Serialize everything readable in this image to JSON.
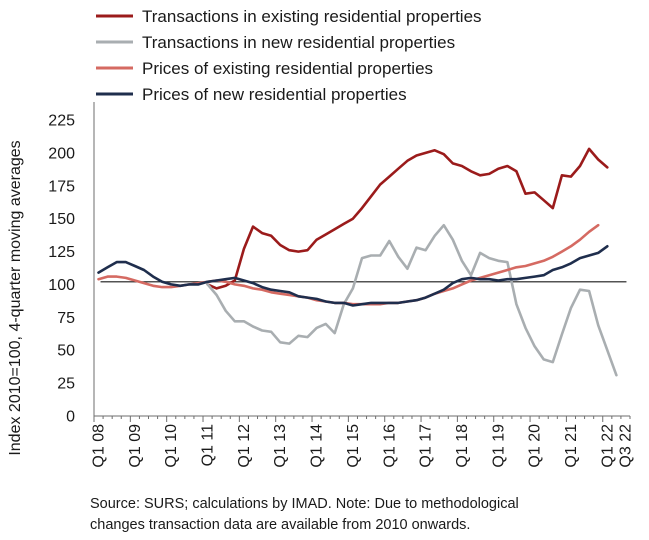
{
  "chart_data": {
    "type": "line",
    "ylabel": "Index 2010=100, 4-quarter moving averages",
    "ylim": [
      0,
      225
    ],
    "yticks": [
      0,
      25,
      50,
      75,
      100,
      125,
      150,
      175,
      200,
      225
    ],
    "xticks": [
      "Q1 08",
      "Q1 09",
      "Q1 10",
      "Q1 11",
      "Q1 12",
      "Q1 13",
      "Q1 14",
      "Q1 15",
      "Q1 16",
      "Q1 17",
      "Q1 18",
      "Q1 19",
      "Q1 20",
      "Q1 21",
      "Q1 22",
      "Q3 22"
    ],
    "x_start": "Q1 08",
    "x_end": "Q3 22",
    "reference_line": 102,
    "legend_position": "top",
    "grid": false,
    "series": [
      {
        "name": "Transactions in existing residential properties",
        "color": "#9b1b1b",
        "start": "Q1 11",
        "values": [
          100,
          97,
          99,
          103,
          127,
          144,
          139,
          137,
          130,
          126,
          125,
          126,
          134,
          138,
          142,
          146,
          150,
          158,
          167,
          176,
          182,
          188,
          194,
          198,
          200,
          202,
          199,
          192,
          190,
          186,
          183,
          184,
          188,
          190,
          186,
          169,
          170,
          164,
          158,
          183,
          182,
          190,
          203,
          195,
          189
        ]
      },
      {
        "name": "Transactions in new residential properties",
        "color": "#a9aeb1",
        "start": "Q1 11",
        "values": [
          100,
          92,
          80,
          72,
          72,
          68,
          65,
          64,
          56,
          55,
          61,
          60,
          67,
          70,
          63,
          85,
          97,
          120,
          122,
          122,
          133,
          121,
          112,
          128,
          126,
          137,
          145,
          134,
          118,
          107,
          124,
          120,
          118,
          117,
          85,
          67,
          53,
          43,
          41,
          62,
          82,
          96,
          95,
          69,
          50,
          31
        ]
      },
      {
        "name": "Prices of existing residential properties",
        "color": "#d56a62",
        "start": "Q1 08",
        "values": [
          104,
          106,
          106,
          105,
          103,
          101,
          99,
          98,
          98,
          99,
          100,
          101,
          102,
          103,
          102,
          100,
          99,
          97,
          96,
          94,
          93,
          92,
          91,
          90,
          88,
          87,
          86,
          86,
          85,
          85,
          85,
          85,
          86,
          86,
          87,
          88,
          90,
          93,
          95,
          97,
          100,
          103,
          105,
          107,
          109,
          111,
          113,
          114,
          116,
          118,
          121,
          125,
          129,
          134,
          140,
          145
        ]
      },
      {
        "name": "Prices of new residential properties",
        "color": "#1f2e4d",
        "start": "Q1 08",
        "values": [
          109,
          113,
          117,
          117,
          114,
          111,
          106,
          102,
          100,
          99,
          100,
          100,
          102,
          103,
          104,
          105,
          103,
          101,
          98,
          96,
          95,
          94,
          91,
          90,
          89,
          87,
          86,
          86,
          84,
          85,
          86,
          86,
          86,
          86,
          87,
          88,
          90,
          93,
          96,
          101,
          104,
          105,
          104,
          104,
          103,
          104,
          104,
          105,
          106,
          107,
          111,
          113,
          116,
          120,
          122,
          124,
          129
        ]
      }
    ]
  },
  "footnote": {
    "line1": "Source: SURS; calculations by IMAD. Note: Due to methodological",
    "line2": "changes transaction data are available from 2010 onwards."
  }
}
